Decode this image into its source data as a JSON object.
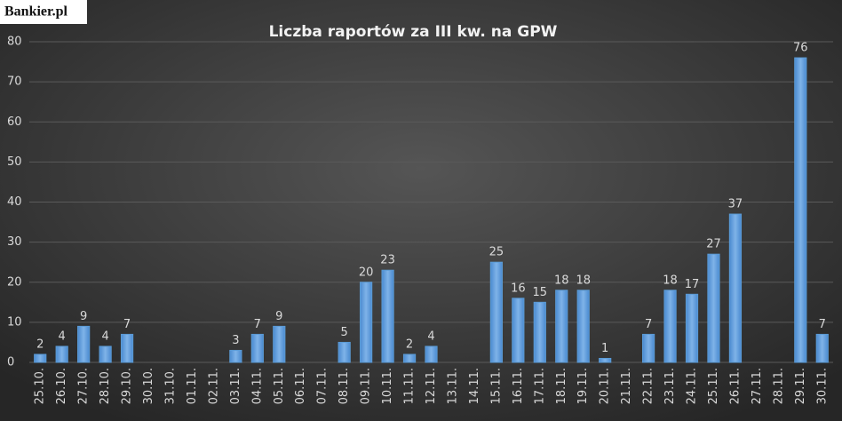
{
  "logo": "Bankier.pl",
  "chart_data": {
    "type": "bar",
    "title": "Liczba raportów za III kw. na GPW",
    "categories": [
      "25.10.",
      "26.10.",
      "27.10.",
      "28.10.",
      "29.10.",
      "30.10.",
      "31.10.",
      "01.11.",
      "02.11.",
      "03.11.",
      "04.11.",
      "05.11.",
      "06.11.",
      "07.11.",
      "08.11.",
      "09.11.",
      "10.11.",
      "11.11.",
      "12.11.",
      "13.11.",
      "14.11.",
      "15.11.",
      "16.11.",
      "17.11.",
      "18.11.",
      "19.11.",
      "20.11.",
      "21.11.",
      "22.11.",
      "23.11.",
      "24.11.",
      "25.11.",
      "26.11.",
      "27.11.",
      "28.11.",
      "29.11.",
      "30.11."
    ],
    "values": [
      2,
      4,
      9,
      4,
      7,
      null,
      null,
      null,
      null,
      3,
      7,
      9,
      null,
      null,
      5,
      20,
      23,
      2,
      4,
      null,
      null,
      25,
      16,
      15,
      18,
      18,
      1,
      null,
      7,
      18,
      17,
      27,
      37,
      null,
      null,
      76,
      7
    ],
    "color": "#5b9bd5",
    "ylim": [
      0,
      80
    ],
    "yticks": [
      0,
      10,
      20,
      30,
      40,
      50,
      60,
      70,
      80
    ],
    "grid": true
  }
}
